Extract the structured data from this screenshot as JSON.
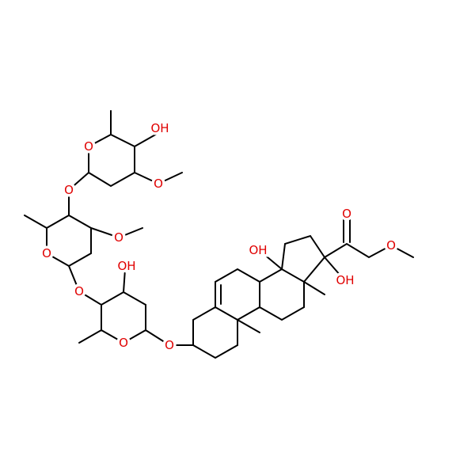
{
  "labels": [
    "OH",
    "O",
    "O",
    "O",
    "O",
    "O",
    "O",
    "OH",
    "O",
    "O",
    "OH",
    "OH",
    "O",
    "O"
  ]
}
